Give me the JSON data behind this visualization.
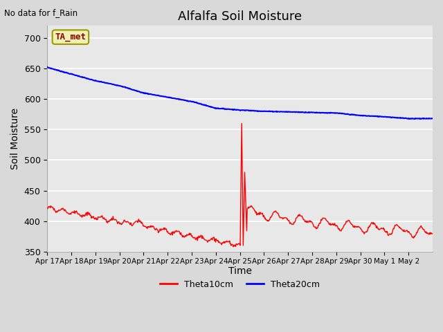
{
  "title": "Alfalfa Soil Moisture",
  "subtitle": "No data for f_Rain",
  "ylabel": "Soil Moisture",
  "xlabel": "Time",
  "annotation": "TA_met",
  "ylim": [
    350,
    720
  ],
  "yticks": [
    350,
    400,
    450,
    500,
    550,
    600,
    650,
    700
  ],
  "xtick_labels": [
    "Apr 17",
    "Apr 18",
    "Apr 19",
    "Apr 20",
    "Apr 21",
    "Apr 22",
    "Apr 23",
    "Apr 24",
    "Apr 25",
    "Apr 26",
    "Apr 27",
    "Apr 28",
    "Apr 29",
    "Apr 30",
    "May 1",
    "May 2"
  ],
  "legend_labels": [
    "Theta10cm",
    "Theta20cm"
  ],
  "line_colors": [
    "red",
    "blue"
  ],
  "background_color": "#d9d9d9",
  "plot_bg_color": "#e8e8e8",
  "grid_color": "white",
  "fig_width": 6.4,
  "fig_height": 4.8,
  "dpi": 100
}
